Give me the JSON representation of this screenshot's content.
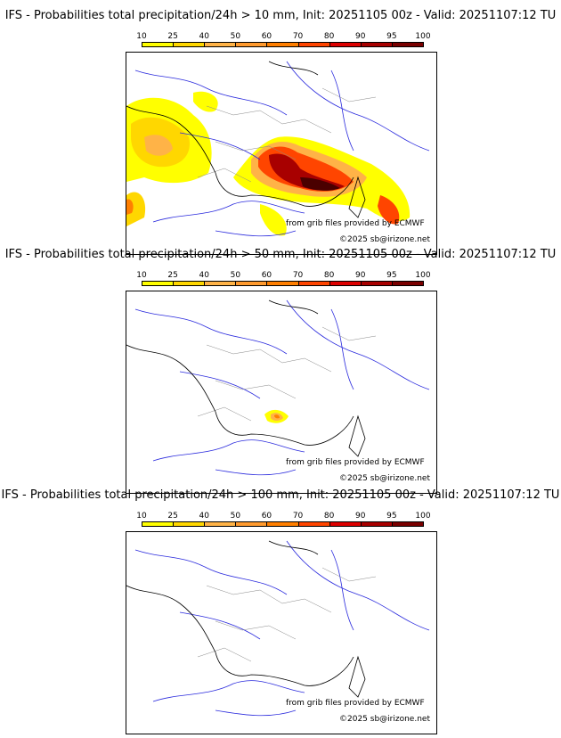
{
  "legend": {
    "ticks": [
      "10",
      "25",
      "40",
      "50",
      "60",
      "70",
      "80",
      "90",
      "95",
      "100"
    ],
    "colors": [
      "#ffff00",
      "#ffd700",
      "#ffb347",
      "#ff9a2e",
      "#ff7f00",
      "#ff4500",
      "#dd0000",
      "#a80000",
      "#7a0000",
      "#4a0000"
    ]
  },
  "panels": [
    {
      "title": "IFS - Probabilities total precipitation/24h > 10 mm, Init: 20251105 00z - Valid: 20251107:12 TU",
      "credit": "from grib files provided by ECMWF",
      "copyright": "©2025 sb@irizone.net"
    },
    {
      "title": "IFS - Probabilities total precipitation/24h > 50 mm, Init: 20251105 00z - Valid: 20251107:12 TU",
      "credit": "from grib files provided by ECMWF",
      "copyright": "©2025 sb@irizone.net"
    },
    {
      "title": "IFS - Probabilities total precipitation/24h > 100 mm, Init: 20251105 00z - Valid: 20251107:12 TU",
      "credit": "from grib files provided by ECMWF",
      "copyright": "©2025 sb@irizone.net"
    }
  ]
}
